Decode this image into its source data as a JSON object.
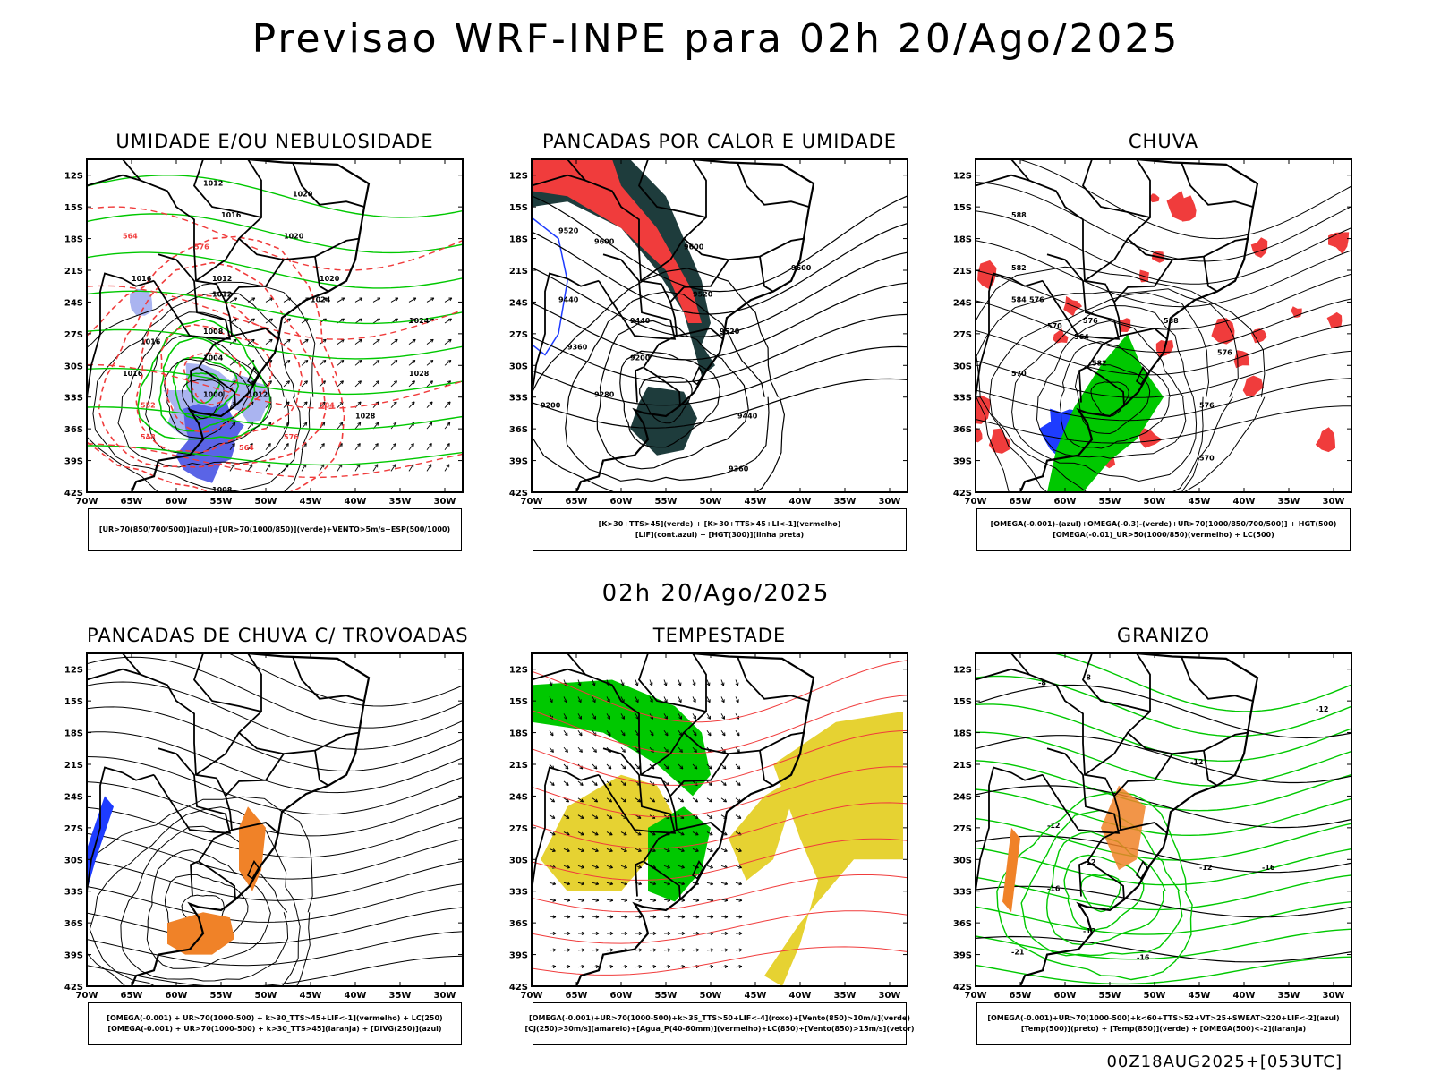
{
  "title": "Previsao WRF-INPE  para 02h 20/Ago/2025",
  "mid_date": "02h 20/Ago/2025",
  "footer": "00Z18AUG2025+[053UTC]",
  "axes": {
    "lat_labels": [
      "12S",
      "15S",
      "18S",
      "21S",
      "24S",
      "27S",
      "30S",
      "33S",
      "36S",
      "39S",
      "42S"
    ],
    "lon_labels": [
      "70W",
      "65W",
      "60W",
      "55W",
      "50W",
      "45W",
      "40W",
      "35W",
      "30W"
    ]
  },
  "colors": {
    "green": "#00c800",
    "red": "#f03c3c",
    "blue": "#1e3cff",
    "lightblue": "#aab4f0",
    "darkteal": "#1e3c3c",
    "yellow": "#e6d232",
    "orange": "#f08228"
  },
  "panels": [
    {
      "title": "UMIDADE E/OU NEBULOSIDADE",
      "legend": [
        "[UR>70(850/700/500)](azul)+[UR>70(1000/850)](verde)+VENTO>5m/s+ESP(500/1000)"
      ],
      "labels": [
        "1020",
        "1012",
        "1016",
        "1020",
        "1012",
        "1016",
        "1012",
        "1008",
        "1004",
        "1000",
        "1012",
        "1016",
        "1020",
        "1024",
        "1028",
        "1024",
        "1028",
        "1016",
        "1008",
        "564",
        "576",
        "552",
        "548",
        "564",
        "576",
        "584"
      ]
    },
    {
      "title": "PANCADAS POR CALOR E UMIDADE",
      "legend": [
        "[K>30+TTS>45](verde) + [K>30+TTS>45+LI<-1](vermelho)",
        "[LIF](cont.azul) + [HGT(300)](linha preta)"
      ],
      "labels": [
        "9520",
        "9600",
        "9600",
        "9600",
        "9440",
        "9520",
        "9360",
        "9440",
        "9520",
        "9200",
        "9280",
        "9200",
        "9440",
        "9360"
      ]
    },
    {
      "title": "CHUVA",
      "legend": [
        "[OMEGA(-0.001)-(azul)+OMEGA(-0.3)-(verde)+UR>70(1000/850/700/500)] + HGT(500)",
        "[OMEGA(-0.01)_UR>50(1000/850)(vermelho) + LC(500)"
      ],
      "labels": [
        "588",
        "582",
        "576",
        "570",
        "564",
        "576",
        "582",
        "588",
        "570",
        "576",
        "576",
        "584",
        "570"
      ]
    },
    {
      "title": "PANCADAS DE CHUVA C/ TROVOADAS",
      "legend": [
        "[OMEGA(-0.001) + UR>70(1000-500) + k>30_TTS>45+LIF<-1](vermelho) + LC(250)",
        "[OMEGA(-0.001) + UR>70(1000-500) + k>30_TTS>45](laranja) + [DIVG(250)](azul)"
      ],
      "labels": []
    },
    {
      "title": "TEMPESTADE",
      "legend": [
        "[OMEGA(-0.001)+UR>70(1000-500)+k>35_TTS>50+LIF<-4](roxo)+[Vento(850)>10m/s](verde)",
        "[CJ(250)>30m/s](amarelo)+[Agua_P(40-60mm)](vermelho)+LC(850)+[Vento(850)>15m/s](vetor)"
      ],
      "labels": []
    },
    {
      "title": "GRANIZO",
      "legend": [
        "[OMEGA(-0.001)+UR>70(1000-500)+k<60+TTS>52+VT>25+SWEAT>220+LIF<-2](azul)",
        "[Temp(500)](preto) + [Temp(850)](verde) + [OMEGA(500)<-2](laranja)"
      ],
      "labels": [
        "-8",
        "-8",
        "-12",
        "-12",
        "-16",
        "-12",
        "-12",
        "-12",
        "-12",
        "-16",
        "-21",
        "-16"
      ]
    }
  ]
}
